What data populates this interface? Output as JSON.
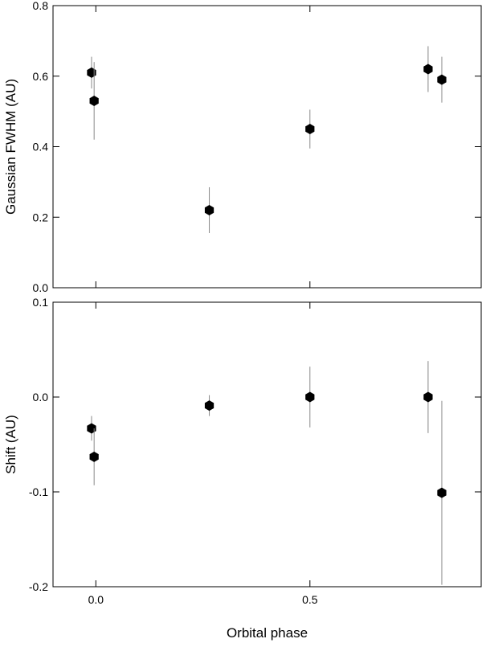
{
  "chart_data": [
    {
      "type": "scatter",
      "ylabel": "Gaussian FWHM (AU)",
      "color": "#000000",
      "error_color": "#888888",
      "x": [
        -0.01,
        -0.004,
        0.265,
        0.5,
        0.776,
        0.808
      ],
      "values": [
        0.61,
        0.53,
        0.22,
        0.45,
        0.62,
        0.59
      ],
      "errors": [
        0.045,
        0.11,
        0.065,
        0.055,
        0.065,
        0.065
      ],
      "xlim": [
        -0.1,
        0.9
      ],
      "xticks": [
        0,
        0.5
      ],
      "ylim": [
        0,
        0.8
      ],
      "yticks": [
        {
          "value": 0,
          "label": "0.0"
        },
        0.2,
        0.4,
        0.6,
        0.8
      ]
    },
    {
      "type": "scatter",
      "ylabel": "Shift (AU)",
      "xlabel": "Orbital phase",
      "color": "#000000",
      "error_color": "#888888",
      "x": [
        -0.01,
        -0.004,
        0.265,
        0.5,
        0.776,
        0.808
      ],
      "values": [
        -0.033,
        -0.063,
        -0.009,
        0.0,
        0.0,
        -0.101
      ],
      "errors": [
        0.013,
        0.03,
        0.011,
        0.032,
        0.038,
        0.097
      ],
      "xlim": [
        -0.1,
        0.9
      ],
      "xticks": [
        {
          "value": 0,
          "label": "0.0"
        },
        0.5
      ],
      "ylim": [
        -0.2,
        0.1
      ],
      "yticks": [
        -0.2,
        -0.1,
        {
          "value": 0,
          "label": "0.0"
        },
        0.1
      ]
    }
  ]
}
